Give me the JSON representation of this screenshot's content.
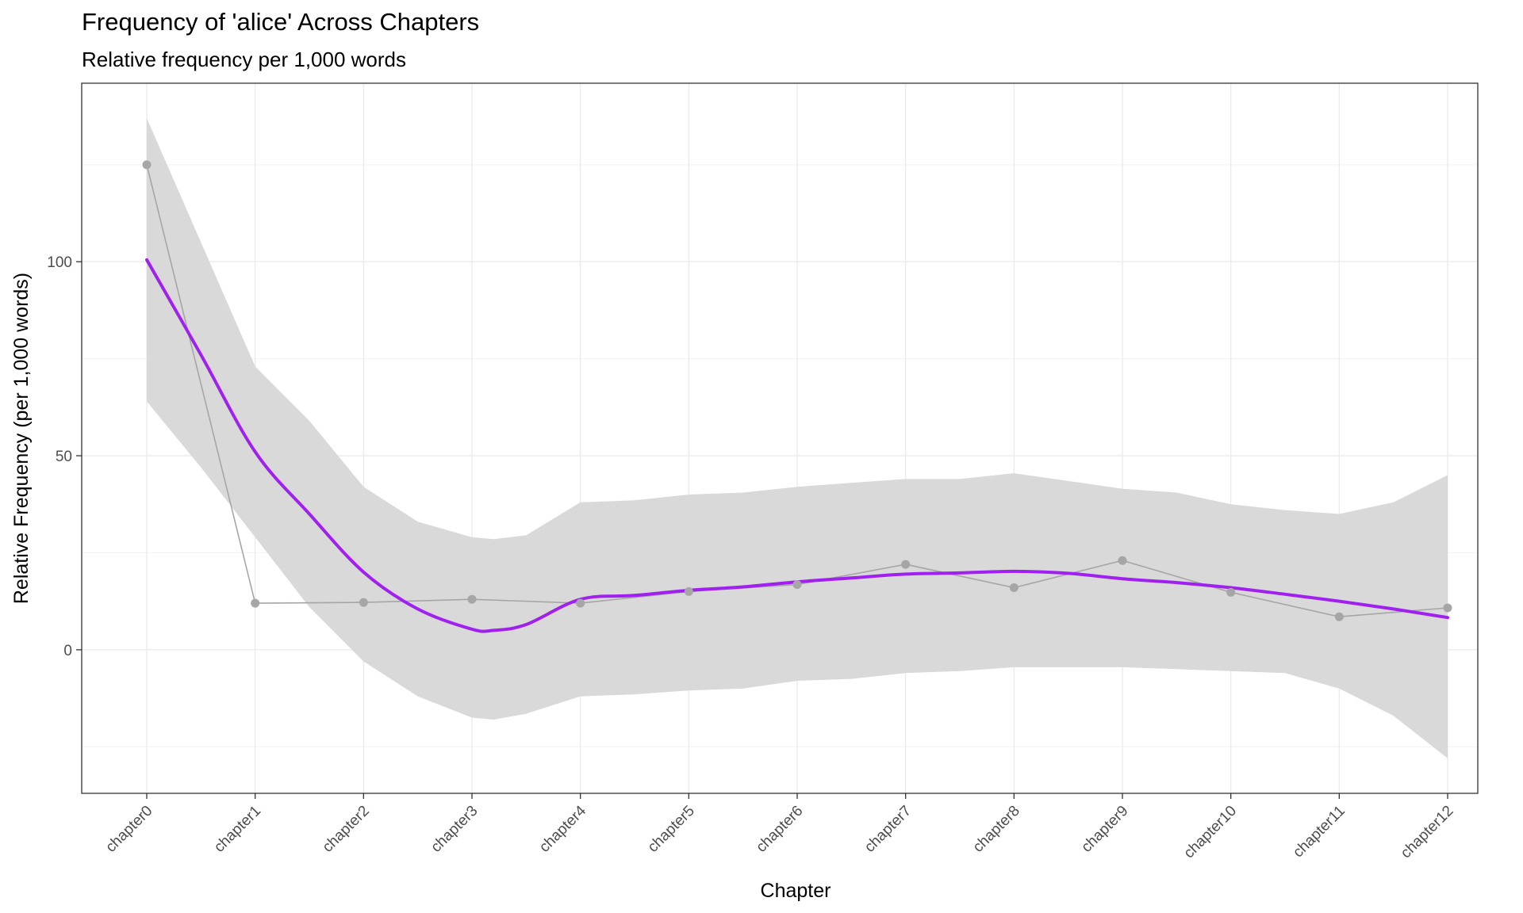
{
  "chart_data": {
    "type": "line",
    "title": "Frequency of 'alice' Across Chapters",
    "subtitle": "Relative frequency per 1,000 words",
    "xlabel": "Chapter",
    "ylabel": "Relative Frequency (per 1,000 words)",
    "categories": [
      "chapter0",
      "chapter1",
      "chapter2",
      "chapter3",
      "chapter4",
      "chapter5",
      "chapter6",
      "chapter7",
      "chapter8",
      "chapter9",
      "chapter10",
      "chapter11",
      "chapter12"
    ],
    "y_ticks": [
      0,
      50,
      100
    ],
    "ylim": [
      -37,
      146
    ],
    "grid": true,
    "series": [
      {
        "values": [
          125,
          12,
          12.2,
          13,
          12,
          15,
          16.8,
          22,
          16,
          23,
          14.8,
          8.5,
          10.8
        ],
        "color": "#a6a6a6"
      }
    ],
    "smooth": {
      "x": [
        0,
        0.5,
        1,
        1.5,
        2,
        2.5,
        3,
        3.2,
        3.5,
        4,
        4.5,
        5,
        5.5,
        6,
        6.5,
        7,
        7.5,
        8,
        8.5,
        9,
        9.5,
        10,
        10.5,
        11,
        11.5,
        12
      ],
      "y": [
        100.5,
        76,
        51,
        35,
        20,
        10.5,
        5.3,
        5,
        6.5,
        13,
        14,
        15.3,
        16.2,
        17.5,
        18.5,
        19.5,
        19.8,
        20.2,
        19.7,
        18.3,
        17.3,
        16,
        14.3,
        12.5,
        10.5,
        8.3
      ],
      "se_lower": [
        64,
        47,
        29,
        11,
        -3,
        -12,
        -17.5,
        -18,
        -16.5,
        -12,
        -11.5,
        -10.5,
        -10,
        -8,
        -7.5,
        -6,
        -5.5,
        -4.5,
        -4.5,
        -4.5,
        -5,
        -5.5,
        -6,
        -10,
        -17,
        -28
      ],
      "se_upper": [
        137,
        105,
        73,
        59,
        42,
        33,
        29,
        28.5,
        29.5,
        38,
        38.5,
        40,
        40.5,
        42,
        43,
        44,
        44,
        45.5,
        43.5,
        41.5,
        40.5,
        37.5,
        36,
        35,
        38,
        45
      ],
      "color": "#a020f0",
      "band_color": "#d9d9d9"
    }
  }
}
